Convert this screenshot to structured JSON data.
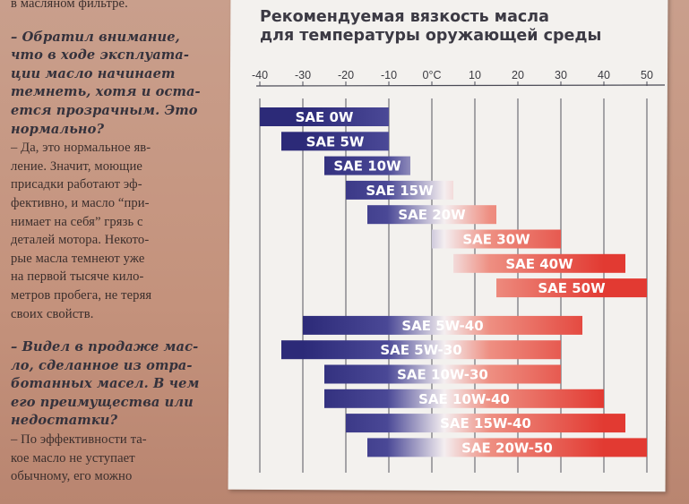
{
  "article": {
    "top_fragment": "в масляном фильтре.",
    "q1": [
      "– Обратил внимание,",
      "что в ходе эксплуата-",
      "ции масло начинает",
      "темнеть, хотя и оста-",
      "ется прозрачным. Это",
      "нормально?"
    ],
    "a1": [
      "– Да, это нормальное яв-",
      "ление. Значит, моющие",
      "присадки работают эф-",
      "фективно, и масло “при-",
      "нимает на себя” грязь с",
      "деталей мотора. Некото-",
      "рые масла темнеют уже",
      "на первой тысяче кило-",
      "метров пробега, не теряя",
      "своих свойств."
    ],
    "q2": [
      "– Видел в продаже мас-",
      "ло, сделанное из отра-",
      "ботанных масел. В чем",
      "его преимущества или",
      "недостатки?"
    ],
    "a2": [
      "– По эффективности та-",
      "кое масло не уступает",
      "обычному, его можно"
    ]
  },
  "chart_data": {
    "type": "bar",
    "orientation": "horizontal-range",
    "title": [
      "Рекомендуемая вязкость масла",
      "для температуры оружающей среды"
    ],
    "x_ticks": [
      "-40",
      "-30",
      "-20",
      "-10",
      "0°C",
      "10",
      "20",
      "30",
      "40",
      "50"
    ],
    "x_tick_values": [
      -40,
      -30,
      -20,
      -10,
      0,
      10,
      20,
      30,
      40,
      50
    ],
    "xlim": [
      -40,
      50
    ],
    "unit": "°C",
    "grid": true,
    "colors": {
      "cold": "#2c2a78",
      "warm": "#e23a32",
      "label": "#ffffff"
    },
    "series": [
      {
        "name": "SAE 0W",
        "range": [
          -40,
          -10
        ]
      },
      {
        "name": "SAE 5W",
        "range": [
          -35,
          -10
        ]
      },
      {
        "name": "SAE 10W",
        "range": [
          -25,
          -5
        ]
      },
      {
        "name": "SAE 15W",
        "range": [
          -20,
          5
        ]
      },
      {
        "name": "SAE 20W",
        "range": [
          -15,
          15
        ]
      },
      {
        "name": "SAE 30W",
        "range": [
          0,
          30
        ]
      },
      {
        "name": "SAE 40W",
        "range": [
          5,
          45
        ]
      },
      {
        "name": "SAE 50W",
        "range": [
          15,
          50
        ]
      },
      {
        "name": "SAE 5W-40",
        "range": [
          -30,
          35
        ]
      },
      {
        "name": "SAE 5W-30",
        "range": [
          -35,
          30
        ]
      },
      {
        "name": "SAE 10W-30",
        "range": [
          -25,
          30
        ]
      },
      {
        "name": "SAE 10W-40",
        "range": [
          -25,
          40
        ]
      },
      {
        "name": "SAE 15W-40",
        "range": [
          -20,
          45
        ]
      },
      {
        "name": "SAE 20W-50",
        "range": [
          -15,
          50
        ]
      }
    ]
  }
}
